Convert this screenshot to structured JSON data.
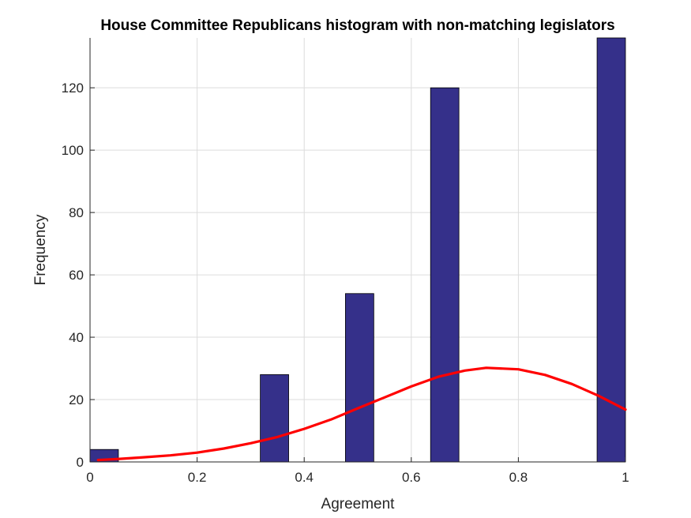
{
  "chart_data": {
    "type": "bar",
    "title": "House Committee Republicans histogram with non-matching legislators",
    "xlabel": "Agreement",
    "ylabel": "Frequency",
    "xlim": [
      0,
      1
    ],
    "ylim": [
      0,
      136
    ],
    "xticks": [
      "0",
      "0.2",
      "0.4",
      "0.6",
      "0.8",
      "1"
    ],
    "yticks": [
      "0",
      "20",
      "40",
      "60",
      "80",
      "100",
      "120"
    ],
    "grid": true,
    "bar_color": "#35308a",
    "bins": [
      {
        "x_start": 0.0,
        "x_end": 0.053,
        "value": 4
      },
      {
        "x_start": 0.318,
        "x_end": 0.371,
        "value": 28
      },
      {
        "x_start": 0.477,
        "x_end": 0.53,
        "value": 54
      },
      {
        "x_start": 0.636,
        "x_end": 0.689,
        "value": 120
      },
      {
        "x_start": 0.947,
        "x_end": 1.0,
        "value": 136
      }
    ],
    "series": [
      {
        "type": "line",
        "color": "#ff0000",
        "x": [
          0.015,
          0.05,
          0.1,
          0.15,
          0.2,
          0.25,
          0.3,
          0.35,
          0.4,
          0.45,
          0.5,
          0.55,
          0.6,
          0.65,
          0.7,
          0.74,
          0.8,
          0.85,
          0.9,
          0.95,
          1.0
        ],
        "y": [
          0.6,
          0.9,
          1.5,
          2.1,
          3.0,
          4.3,
          6.0,
          8.0,
          10.6,
          13.6,
          17.2,
          20.7,
          24.2,
          27.3,
          29.3,
          30.2,
          29.7,
          27.9,
          25.0,
          21.2,
          16.8
        ]
      }
    ]
  }
}
